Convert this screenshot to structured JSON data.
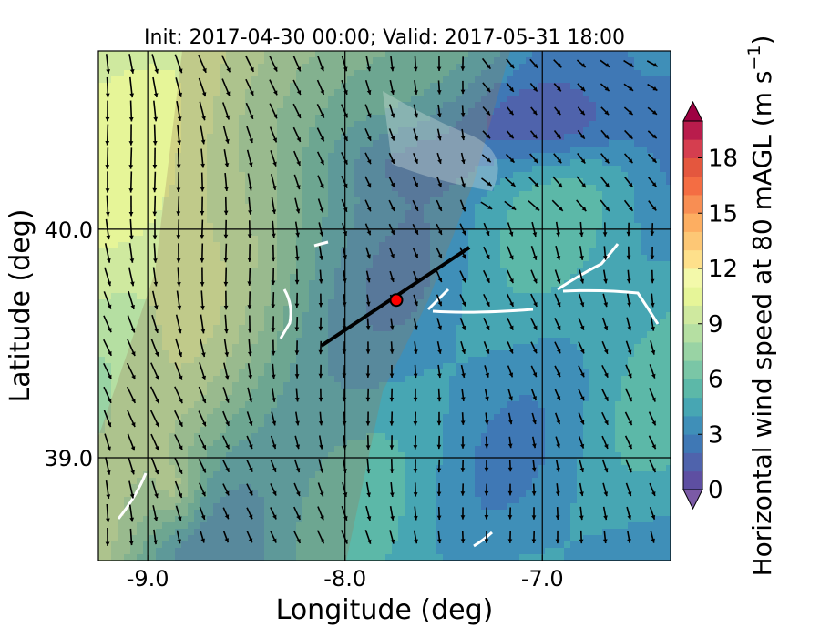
{
  "chart_data": {
    "type": "heatmap",
    "title": "Init: 2017-04-30 00:00; Valid: 2017-05-31 18:00",
    "xlabel": "Longitude (deg)",
    "ylabel": "Latitude (deg)",
    "xlim": [
      -9.25,
      -6.35
    ],
    "ylim": [
      38.55,
      40.78
    ],
    "x_ticks": [
      -9.0,
      -8.0,
      -7.0
    ],
    "x_tick_labels": [
      "-9.0",
      "-8.0",
      "-7.0"
    ],
    "y_ticks": [
      39.0,
      40.0
    ],
    "y_tick_labels": [
      "39.0",
      "40.0"
    ],
    "grid_lons": [
      -9.0,
      -8.0,
      -7.0
    ],
    "grid_lats": [
      39.0,
      40.0
    ],
    "colorbar": {
      "label_main": "Horizontal wind speed at 80 mAGL (m s",
      "label_sup": "−1",
      "label_end": ")",
      "range": [
        0,
        20
      ],
      "ticks": [
        0,
        3,
        6,
        9,
        12,
        15,
        18
      ],
      "tick_labels": [
        "0",
        "3",
        "6",
        "9",
        "12",
        "15",
        "18"
      ],
      "extend": "both",
      "colors": [
        "#5e4fa2",
        "#4f63ac",
        "#3f78b5",
        "#3f8fb8",
        "#47a6b3",
        "#5cb8a8",
        "#7ac6a6",
        "#99d3a4",
        "#b5dfa2",
        "#cfe99f",
        "#e6f598",
        "#f3f9aa",
        "#fee08b",
        "#fdc775",
        "#fdae61",
        "#f88e53",
        "#f46d43",
        "#e4573e",
        "#d53e4f",
        "#b91c4c"
      ],
      "under_color": "#7b5aa6",
      "over_color": "#9e0142"
    },
    "transect": {
      "start": [
        -8.12,
        39.49
      ],
      "end": [
        -7.37,
        39.92
      ],
      "color": "#000000"
    },
    "site_marker": {
      "lon": -7.74,
      "lat": 39.69,
      "color": "#ff0000"
    },
    "wind_vectors_description": "mostly southerly / south-southeasterly flow"
  }
}
